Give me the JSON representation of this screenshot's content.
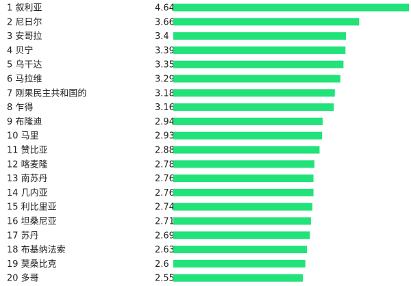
{
  "chart_data": {
    "type": "bar",
    "orientation": "horizontal",
    "title": "",
    "xlabel": "",
    "ylabel": "",
    "bar_color": "#22E27A",
    "grid": false,
    "legend": "none",
    "categories": [
      "1 叙利亚",
      "2 尼日尔",
      "3 安哥拉",
      "4 贝宁",
      "5 乌干达",
      "6 马拉维",
      "7 刚果民主共和国的",
      "8 乍得",
      "9 布隆迪",
      "10 马里",
      "11 赞比亚",
      "12 喀麦隆",
      "13 南苏丹",
      "14 几内亚",
      "15 利比里亚",
      "16 坦桑尼亚",
      "17 苏丹",
      "18 布基纳法索",
      "19 莫桑比克",
      "20 多哥"
    ],
    "values": [
      4.64,
      3.66,
      3.4,
      3.39,
      3.35,
      3.29,
      3.18,
      3.16,
      2.94,
      2.93,
      2.88,
      2.78,
      2.76,
      2.76,
      2.74,
      2.71,
      2.69,
      2.63,
      2.6,
      2.55
    ],
    "value_labels": [
      "4.64",
      "3.66",
      "3.4",
      "3.39",
      "3.35",
      "3.29",
      "3.18",
      "3.16",
      "2.94",
      "2.93",
      "2.88",
      "2.78",
      "2.76",
      "2.76",
      "2.74",
      "2.71",
      "2.69",
      "2.63",
      "2.6",
      "2.55"
    ]
  }
}
